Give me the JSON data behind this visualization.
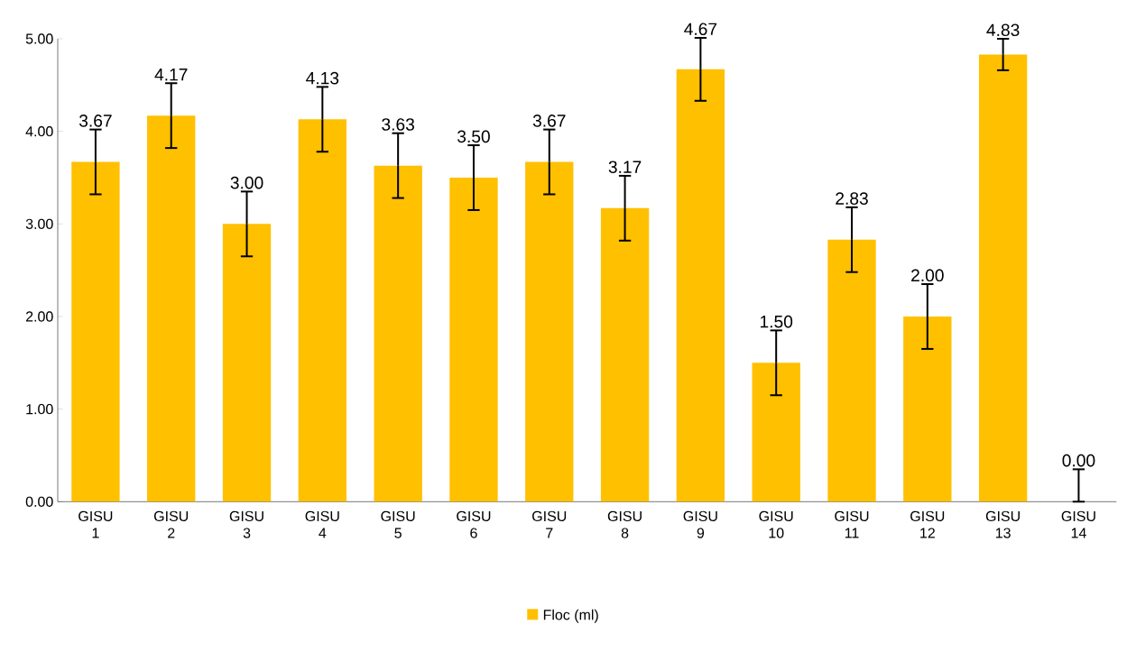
{
  "chart_data": {
    "type": "bar",
    "categories": [
      "GISU 1",
      "GISU 2",
      "GISU 3",
      "GISU 4",
      "GISU 5",
      "GISU 6",
      "GISU 7",
      "GISU 8",
      "GISU 9",
      "GISU 10",
      "GISU 11",
      "GISU 12",
      "GISU 13",
      "GISU 14"
    ],
    "series": [
      {
        "name": "Floc (ml)",
        "color": "#ffc000",
        "values": [
          3.67,
          4.17,
          3.0,
          4.13,
          3.63,
          3.5,
          3.67,
          3.17,
          4.67,
          1.5,
          2.83,
          2.0,
          4.83,
          0.0
        ],
        "errors": [
          0.35,
          0.35,
          0.35,
          0.35,
          0.35,
          0.35,
          0.35,
          0.35,
          0.34,
          0.35,
          0.35,
          0.35,
          0.17,
          [
            0,
            0.35
          ]
        ],
        "value_labels": [
          "3.67",
          "4.17",
          "3.00",
          "4.13",
          "3.63",
          "3.50",
          "3.67",
          "3.17",
          "4.67",
          "1.50",
          "2.83",
          "2.00",
          "4.83",
          "0.00"
        ]
      }
    ],
    "ylim": [
      0,
      5
    ],
    "yticks": [
      {
        "value": 0,
        "label": "0.00"
      },
      {
        "value": 1,
        "label": "1.00"
      },
      {
        "value": 2,
        "label": "2.00"
      },
      {
        "value": 3,
        "label": "3.00"
      },
      {
        "value": 4,
        "label": "4.00"
      },
      {
        "value": 5,
        "label": "5.00"
      }
    ],
    "legend": "bottom"
  }
}
